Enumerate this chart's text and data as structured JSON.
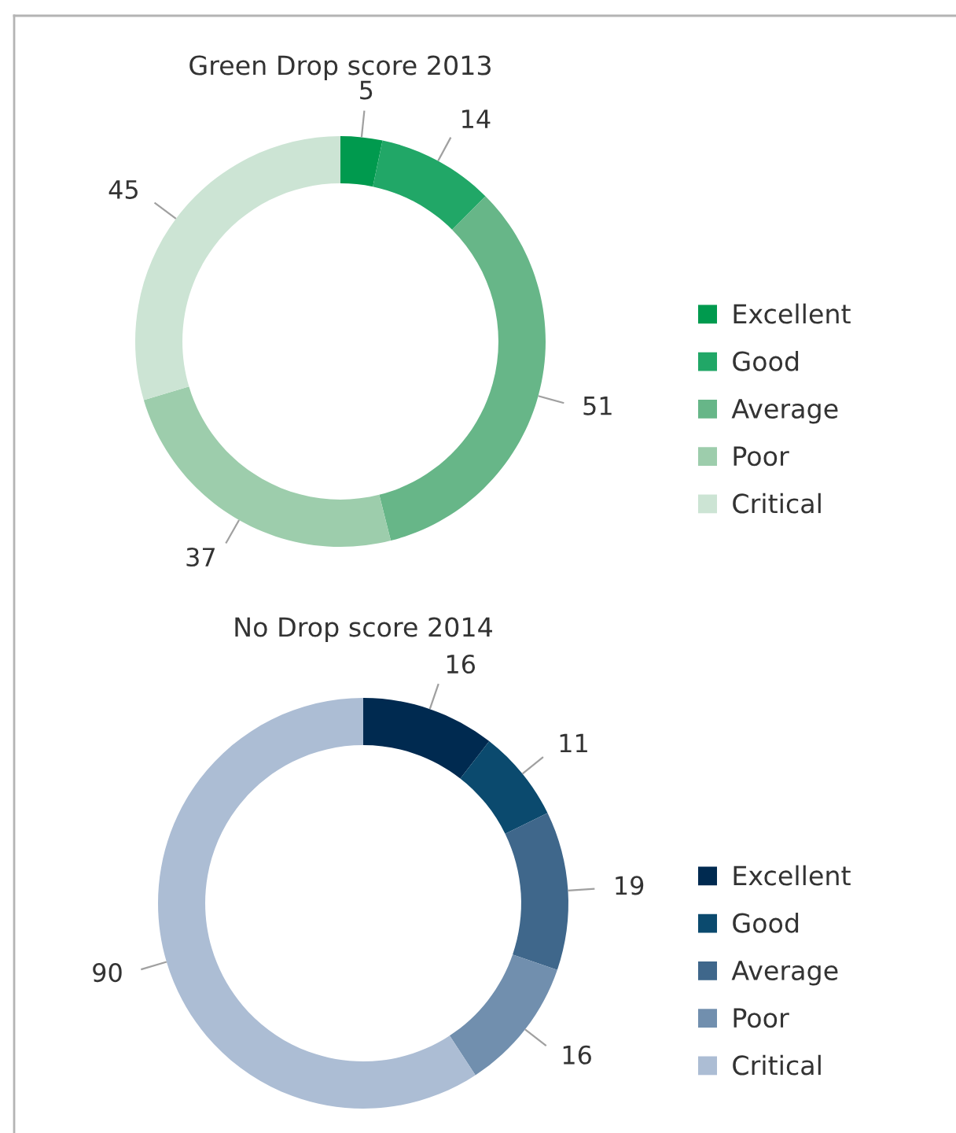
{
  "chart_data": [
    {
      "type": "donut",
      "title": "Green Drop score 2013",
      "categories": [
        "Excellent",
        "Good",
        "Average",
        "Poor",
        "Critical"
      ],
      "values": [
        5,
        14,
        51,
        37,
        45
      ],
      "colors": [
        "#009a4e",
        "#21a767",
        "#67b688",
        "#9dcdac",
        "#cce4d4"
      ],
      "data_labels": true,
      "legend": "bottom right"
    },
    {
      "type": "donut",
      "title": "No Drop score 2014",
      "categories": [
        "Excellent",
        "Good",
        "Average",
        "Poor",
        "Critical"
      ],
      "values": [
        16,
        11,
        19,
        16,
        90
      ],
      "colors": [
        "#002a50",
        "#0b4a6e",
        "#3f678b",
        "#718fae",
        "#acbdd4"
      ],
      "data_labels": true,
      "legend": "bottom right"
    }
  ]
}
